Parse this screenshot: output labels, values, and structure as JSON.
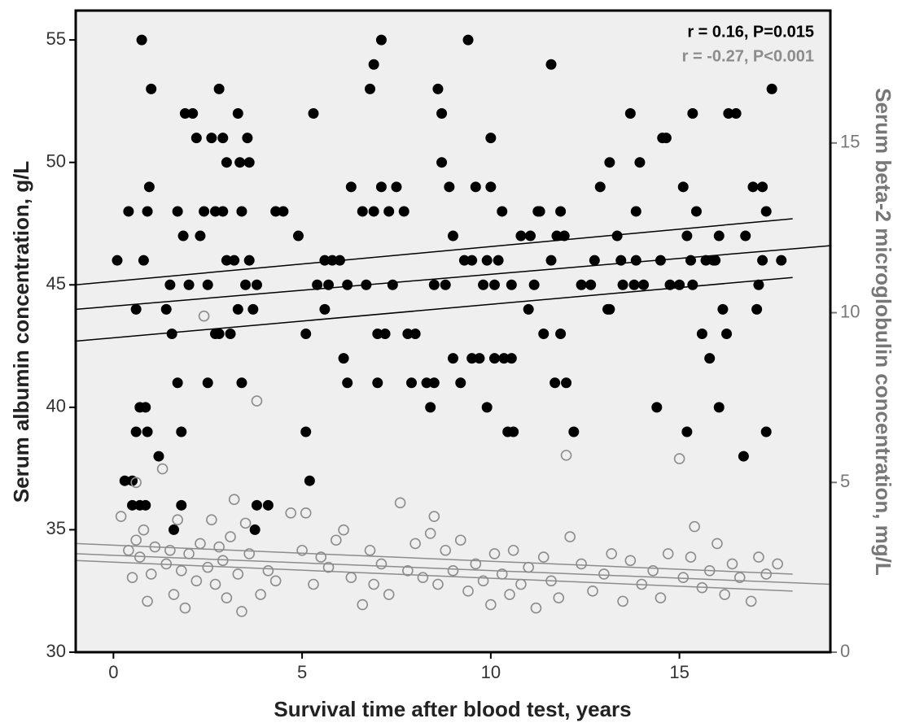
{
  "chart_data": {
    "type": "scatter",
    "xlabel": "Survival time after blood test, years",
    "ylabel": "Serum albumin concentration, g/L",
    "y2label": "Serum beta-2 microglobulin concentration, mg/L",
    "annotations": [
      {
        "text": "r = 0.16, P=0.015",
        "color": "#000000"
      },
      {
        "text": "r = -0.27, P<0.001",
        "color": "#8c8c8c"
      }
    ],
    "xlim": [
      -1,
      19
    ],
    "ylim": [
      30,
      56.2
    ],
    "y2lim": [
      0,
      18.9
    ],
    "xticks": [
      0,
      5,
      10,
      15
    ],
    "yticks": [
      30,
      35,
      40,
      45,
      50,
      55
    ],
    "y2ticks": [
      0,
      5,
      10,
      15
    ],
    "background": "#efefef",
    "series": [
      {
        "color": "#000000",
        "filled": true,
        "x": [
          0.1,
          0.3,
          0.5,
          0.4,
          0.6,
          0.5,
          0.7,
          0.6,
          0.7,
          0.75,
          0.8,
          0.85,
          0.85,
          0.9,
          0.9,
          0.95,
          1.0,
          1.2,
          1.4,
          1.5,
          1.55,
          1.7,
          1.7,
          1.6,
          1.8,
          1.85,
          1.8,
          1.9,
          2.0,
          2.1,
          2.2,
          2.3,
          2.4,
          2.5,
          2.5,
          2.6,
          2.7,
          2.8,
          2.7,
          2.8,
          2.9,
          2.9,
          3.0,
          3.0,
          3.1,
          3.2,
          3.3,
          3.3,
          3.35,
          3.4,
          3.4,
          3.5,
          3.55,
          3.6,
          3.6,
          3.7,
          3.75,
          3.8,
          3.8,
          4.1,
          4.3,
          4.5,
          4.9,
          5.1,
          5.1,
          5.2,
          5.3,
          5.4,
          5.6,
          5.6,
          5.7,
          5.8,
          6.0,
          6.1,
          6.2,
          6.2,
          6.3,
          6.6,
          6.7,
          6.8,
          6.9,
          6.9,
          7.0,
          7.0,
          7.1,
          7.1,
          7.2,
          7.3,
          7.4,
          7.5,
          7.7,
          7.8,
          7.9,
          8.0,
          8.3,
          8.4,
          8.5,
          8.5,
          8.6,
          8.7,
          8.7,
          8.8,
          8.9,
          9.0,
          9.0,
          9.2,
          9.3,
          9.4,
          9.5,
          9.5,
          9.6,
          9.7,
          9.8,
          9.9,
          9.9,
          10.0,
          10.0,
          10.1,
          10.1,
          10.2,
          10.3,
          10.35,
          10.45,
          10.55,
          10.55,
          10.6,
          10.8,
          11.0,
          11.05,
          11.15,
          11.25,
          11.3,
          11.4,
          11.6,
          11.6,
          11.7,
          11.75,
          11.85,
          11.85,
          11.95,
          12.0,
          12.2,
          12.4,
          12.65,
          12.75,
          12.9,
          13.1,
          13.15,
          13.15,
          13.35,
          13.45,
          13.5,
          13.7,
          13.8,
          13.85,
          13.85,
          13.95,
          14.05,
          14.4,
          14.5,
          14.55,
          14.65,
          14.75,
          15.0,
          15.1,
          15.2,
          15.2,
          15.3,
          15.35,
          15.35,
          15.45,
          15.6,
          15.7,
          15.8,
          15.9,
          15.95,
          16.05,
          16.05,
          16.15,
          16.25,
          16.3,
          16.5,
          16.7,
          16.75,
          16.95,
          17.05,
          17.1,
          17.2,
          17.2,
          17.3,
          17.3,
          17.45,
          17.7
        ],
        "values": [
          46,
          37,
          37,
          48,
          44,
          36,
          36,
          39,
          40,
          55,
          46,
          36,
          40,
          39,
          48,
          49,
          53,
          38,
          44,
          45,
          43,
          41,
          48,
          35,
          39,
          47,
          36,
          52,
          45,
          52,
          51,
          47,
          48,
          45,
          41,
          51,
          48,
          53,
          43,
          43,
          51,
          48,
          50,
          46,
          43,
          46,
          44,
          52,
          50,
          48,
          41,
          45,
          51,
          50,
          46,
          44,
          35,
          45,
          36,
          36,
          48,
          48,
          47,
          39,
          43,
          37,
          52,
          45,
          44,
          46,
          45,
          46,
          46,
          42,
          45,
          41,
          49,
          48,
          45,
          53,
          54,
          48,
          43,
          41,
          55,
          49,
          43,
          48,
          45,
          49,
          48,
          43,
          41,
          43,
          41,
          40,
          41,
          45,
          53,
          52,
          50,
          45,
          49,
          47,
          42,
          41,
          46,
          55,
          42,
          46,
          49,
          42,
          45,
          40,
          46,
          51,
          49,
          45,
          42,
          46,
          48,
          42,
          39,
          45,
          42,
          39,
          47,
          44,
          47,
          45,
          48,
          48,
          43,
          54,
          46,
          41,
          47,
          48,
          43,
          47,
          41,
          39,
          45,
          45,
          46,
          49,
          44,
          44,
          50,
          47,
          46,
          45,
          52,
          45,
          48,
          46,
          50,
          45,
          40,
          46,
          51,
          51,
          45,
          45,
          49,
          47,
          39,
          46,
          45,
          52,
          48,
          43,
          46,
          42,
          46,
          46,
          47,
          40,
          44,
          43,
          52,
          52,
          38,
          47,
          49,
          44,
          45,
          46,
          49,
          48,
          39,
          53,
          46
        ]
      },
      {
        "color": "#8c8c8c",
        "filled": false,
        "axis": "y2",
        "x": [
          0.2,
          0.4,
          0.5,
          0.6,
          0.6,
          0.7,
          0.8,
          0.9,
          1.0,
          1.1,
          1.3,
          1.4,
          1.5,
          1.6,
          1.7,
          1.8,
          1.9,
          2.0,
          2.2,
          2.3,
          2.4,
          2.5,
          2.6,
          2.7,
          2.8,
          2.9,
          3.0,
          3.1,
          3.2,
          3.3,
          3.4,
          3.5,
          3.6,
          3.8,
          3.9,
          4.1,
          4.3,
          4.7,
          5.0,
          5.1,
          5.3,
          5.5,
          5.7,
          5.9,
          6.1,
          6.3,
          6.6,
          6.8,
          6.9,
          7.1,
          7.3,
          7.6,
          7.8,
          8.0,
          8.2,
          8.4,
          8.5,
          8.6,
          8.8,
          9.0,
          9.2,
          9.4,
          9.6,
          9.8,
          10.0,
          10.1,
          10.3,
          10.5,
          10.6,
          10.8,
          11.0,
          11.2,
          11.4,
          11.6,
          11.8,
          12.0,
          12.1,
          12.4,
          12.7,
          13.0,
          13.2,
          13.5,
          13.7,
          14.0,
          14.3,
          14.5,
          14.7,
          15.0,
          15.1,
          15.3,
          15.4,
          15.6,
          15.8,
          16.0,
          16.2,
          16.4,
          16.6,
          16.9,
          17.1,
          17.3,
          17.6
        ],
        "values": [
          4.0,
          3.0,
          2.2,
          3.3,
          5.0,
          2.8,
          3.6,
          1.5,
          2.3,
          3.1,
          5.4,
          2.6,
          3.0,
          1.7,
          3.9,
          2.4,
          1.3,
          2.9,
          2.1,
          3.2,
          9.9,
          2.5,
          3.9,
          2.0,
          3.1,
          2.7,
          1.6,
          3.4,
          4.5,
          2.3,
          1.2,
          3.8,
          2.9,
          7.4,
          1.7,
          2.4,
          2.1,
          4.1,
          3.0,
          4.1,
          2.0,
          2.8,
          2.5,
          3.3,
          3.6,
          2.2,
          1.4,
          3.0,
          2.0,
          2.6,
          1.7,
          4.4,
          2.4,
          3.2,
          2.2,
          3.5,
          4.0,
          2.0,
          3.0,
          2.4,
          3.3,
          1.8,
          2.6,
          2.1,
          1.4,
          2.9,
          2.3,
          1.7,
          3.0,
          2.0,
          2.5,
          1.3,
          2.8,
          2.1,
          1.6,
          5.8,
          3.4,
          2.6,
          1.8,
          2.3,
          2.9,
          1.5,
          2.7,
          2.0,
          2.4,
          1.6,
          2.9,
          5.7,
          2.2,
          2.8,
          3.7,
          1.9,
          2.4,
          3.2,
          1.7,
          2.6,
          2.2,
          1.5,
          2.8,
          2.3,
          2.6
        ]
      }
    ],
    "fit_lines": [
      {
        "color": "#000000",
        "x": [
          -1,
          19
        ],
        "values": [
          44.0,
          46.6
        ]
      },
      {
        "color": "#000000",
        "x": [
          -1,
          18
        ],
        "values": [
          45.0,
          47.7
        ]
      },
      {
        "color": "#000000",
        "x": [
          -1,
          18
        ],
        "values": [
          42.7,
          45.3
        ]
      },
      {
        "color": "#8c8c8c",
        "axis": "y2",
        "x": [
          -1,
          19
        ],
        "values": [
          2.9,
          2.0
        ]
      },
      {
        "color": "#8c8c8c",
        "axis": "y2",
        "x": [
          -1,
          18
        ],
        "values": [
          3.2,
          2.3
        ]
      },
      {
        "color": "#8c8c8c",
        "axis": "y2",
        "x": [
          -1,
          18
        ],
        "values": [
          2.7,
          1.8
        ]
      }
    ]
  }
}
